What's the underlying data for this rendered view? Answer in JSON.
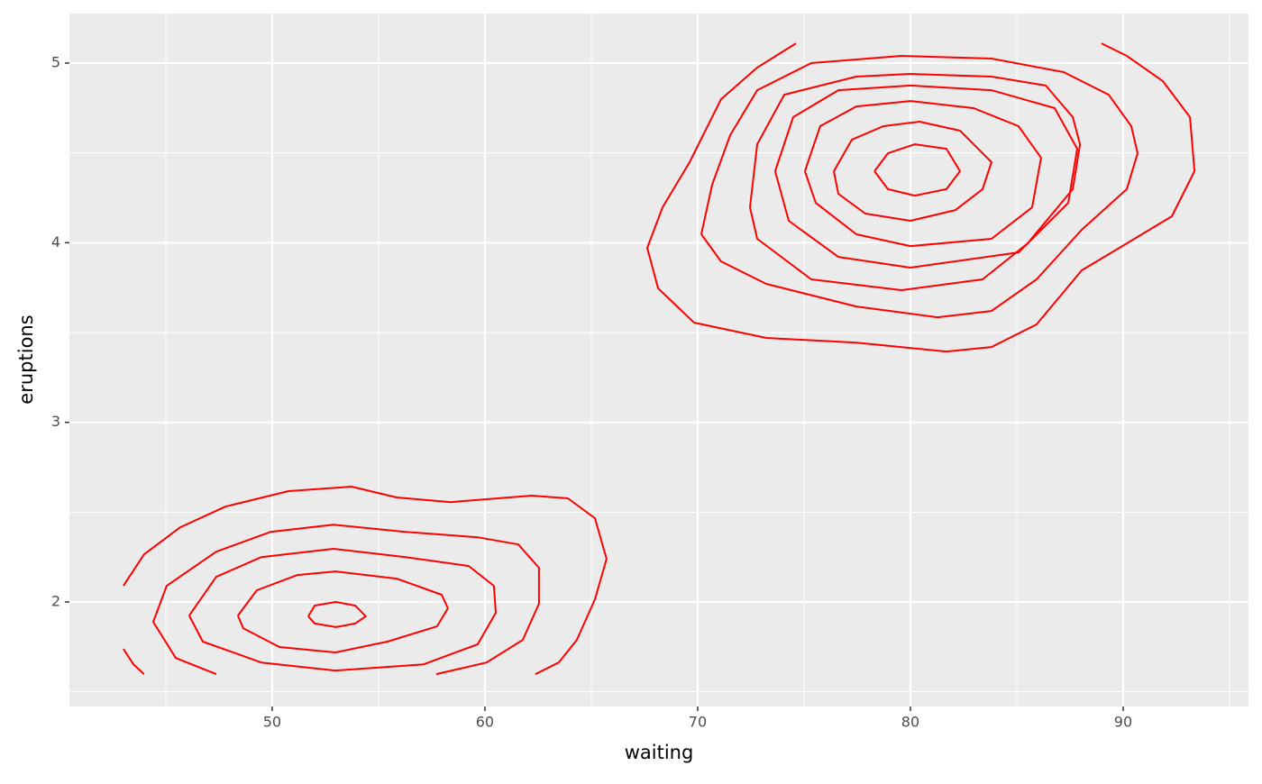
{
  "chart_data": {
    "type": "contour",
    "x_label": "waiting",
    "y_label": "eruptions",
    "color": "#ff0000",
    "xlim": [
      40.47,
      95.89
    ],
    "ylim": [
      1.418,
      5.276
    ],
    "xticks": [
      50,
      60,
      70,
      80,
      90
    ],
    "yticks": [
      2,
      3,
      4,
      5
    ],
    "xminor": [
      45,
      55,
      65,
      75,
      85,
      95
    ],
    "yminor": [
      1.5,
      2.5,
      3.5,
      4.5
    ],
    "grid": true,
    "contours": [
      {
        "x": [
          51.7,
          52.0,
          53.0,
          53.9,
          54.4,
          53.9,
          53.0,
          52.0,
          51.7
        ],
        "y": [
          1.92,
          1.98,
          2.0,
          1.98,
          1.92,
          1.88,
          1.86,
          1.88,
          1.92
        ]
      },
      {
        "x": [
          48.39,
          49.28,
          51.19,
          52.97,
          55.85,
          57.97,
          58.26,
          57.75,
          55.42,
          52.97,
          50.34,
          48.64,
          48.39
        ],
        "y": [
          1.924,
          2.065,
          2.15,
          2.17,
          2.13,
          2.04,
          1.965,
          1.864,
          1.779,
          1.719,
          1.749,
          1.854,
          1.924
        ]
      },
      {
        "x": [
          46.1,
          47.37,
          49.49,
          52.88,
          56.27,
          59.24,
          60.42,
          60.51,
          59.66,
          57.12,
          52.97,
          49.49,
          46.74,
          46.1
        ],
        "y": [
          1.924,
          2.14,
          2.25,
          2.296,
          2.25,
          2.2,
          2.09,
          1.94,
          1.764,
          1.653,
          1.618,
          1.663,
          1.779,
          1.924
        ]
      },
      {
        "x": [
          47.37,
          45.47,
          44.41,
          45.04,
          47.37,
          49.92,
          52.88,
          56.27,
          59.66,
          61.57,
          62.54,
          62.54,
          61.78,
          60.08,
          57.71
        ],
        "y": [
          1.598,
          1.688,
          1.889,
          2.09,
          2.28,
          2.39,
          2.43,
          2.39,
          2.36,
          2.32,
          2.19,
          1.99,
          1.789,
          1.663,
          1.598
        ]
      },
      {
        "x": [
          43.01,
          43.98,
          45.68,
          47.8,
          50.76,
          53.73,
          55.85,
          58.39,
          62.2,
          63.9,
          65.17,
          65.72,
          65.17,
          64.32,
          63.47,
          62.37
        ],
        "y": [
          2.09,
          2.265,
          2.416,
          2.531,
          2.617,
          2.642,
          2.582,
          2.556,
          2.592,
          2.577,
          2.466,
          2.24,
          2.015,
          1.789,
          1.663,
          1.598
        ]
      },
      {
        "x": [
          43.01,
          43.48,
          43.98
        ],
        "y": [
          1.739,
          1.653,
          1.598
        ]
      },
      {
        "x": [
          78.31,
          78.94,
          80.21,
          81.69,
          82.33,
          81.69,
          80.21,
          78.94,
          78.31
        ],
        "y": [
          4.398,
          4.498,
          4.548,
          4.523,
          4.398,
          4.298,
          4.262,
          4.298,
          4.398
        ]
      },
      {
        "x": [
          76.4,
          77.25,
          78.73,
          80.42,
          82.33,
          83.39,
          83.81,
          83.39,
          82.12,
          80.0,
          77.88,
          76.61,
          76.4
        ],
        "y": [
          4.398,
          4.574,
          4.649,
          4.674,
          4.624,
          4.498,
          4.448,
          4.298,
          4.182,
          4.122,
          4.162,
          4.272,
          4.398
        ]
      },
      {
        "x": [
          75.04,
          75.76,
          77.46,
          80.0,
          82.97,
          85.08,
          86.14,
          85.72,
          83.81,
          80.0,
          77.46,
          75.55,
          75.04
        ],
        "y": [
          4.398,
          4.649,
          4.759,
          4.789,
          4.749,
          4.649,
          4.473,
          4.197,
          4.022,
          3.981,
          4.047,
          4.222,
          4.398
        ]
      },
      {
        "x": [
          73.64,
          74.49,
          76.61,
          80.0,
          83.81,
          86.78,
          87.84,
          87.42,
          85.08,
          80.0,
          76.61,
          74.28,
          73.64
        ],
        "y": [
          4.398,
          4.699,
          4.849,
          4.875,
          4.849,
          4.749,
          4.523,
          4.222,
          3.946,
          3.861,
          3.921,
          4.122,
          4.398
        ]
      },
      {
        "x": [
          72.46,
          72.8,
          74.07,
          77.46,
          80.0,
          83.81,
          86.36,
          87.63,
          87.97,
          87.63,
          85.51,
          83.39,
          79.58,
          75.34,
          72.8,
          72.46
        ],
        "y": [
          4.197,
          4.548,
          4.824,
          4.925,
          4.94,
          4.925,
          4.875,
          4.699,
          4.548,
          4.298,
          3.996,
          3.796,
          3.736,
          3.796,
          4.022,
          4.197
        ]
      },
      {
        "x": [
          70.17,
          70.68,
          71.53,
          72.8,
          75.34,
          79.58,
          83.81,
          87.2,
          89.32,
          90.38,
          90.68,
          90.17,
          88.05,
          85.93,
          83.81,
          81.27,
          77.46,
          73.22,
          71.1,
          70.17
        ],
        "y": [
          4.047,
          4.323,
          4.599,
          4.849,
          5.0,
          5.04,
          5.025,
          4.95,
          4.824,
          4.649,
          4.498,
          4.298,
          4.072,
          3.796,
          3.62,
          3.585,
          3.645,
          3.771,
          3.896,
          4.047
        ]
      },
      {
        "x": [
          74.62,
          72.8,
          71.1,
          69.62,
          68.35,
          67.63,
          68.14,
          69.83,
          73.22,
          77.46,
          81.69,
          83.81,
          85.93,
          88.05,
          90.17,
          92.29,
          93.35,
          93.14,
          91.86,
          90.17,
          88.98
        ],
        "y": [
          5.11,
          4.975,
          4.799,
          4.448,
          4.197,
          3.971,
          3.746,
          3.555,
          3.47,
          3.444,
          3.394,
          3.419,
          3.545,
          3.846,
          3.996,
          4.147,
          4.398,
          4.699,
          4.9,
          5.04,
          5.11
        ]
      }
    ]
  }
}
